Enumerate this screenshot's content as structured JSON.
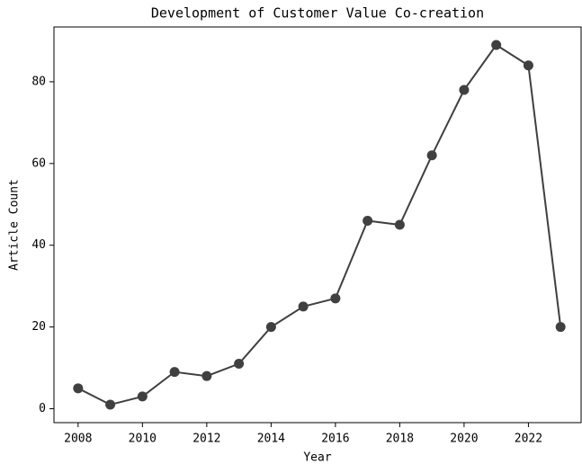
{
  "chart_data": {
    "type": "line",
    "title": "Development of Customer Value Co-creation",
    "x_label": "Year",
    "y_label": "Article Count",
    "x": [
      2008,
      2009,
      2010,
      2011,
      2012,
      2013,
      2014,
      2015,
      2016,
      2017,
      2018,
      2019,
      2020,
      2021,
      2022,
      2023
    ],
    "series": [
      {
        "name": "Article Count",
        "color": "#404040",
        "values": [
          5,
          1,
          3,
          9,
          8,
          11,
          20,
          25,
          27,
          46,
          45,
          62,
          78,
          89,
          84,
          20
        ]
      }
    ],
    "xlim": [
      2007.25,
      2023.75
    ],
    "xticks": [
      2008,
      2010,
      2012,
      2014,
      2016,
      2018,
      2020,
      2022
    ],
    "ylim": [
      -3.4,
      93.4
    ],
    "yticks": [
      0,
      20,
      40,
      60,
      80
    ],
    "grid": false
  }
}
